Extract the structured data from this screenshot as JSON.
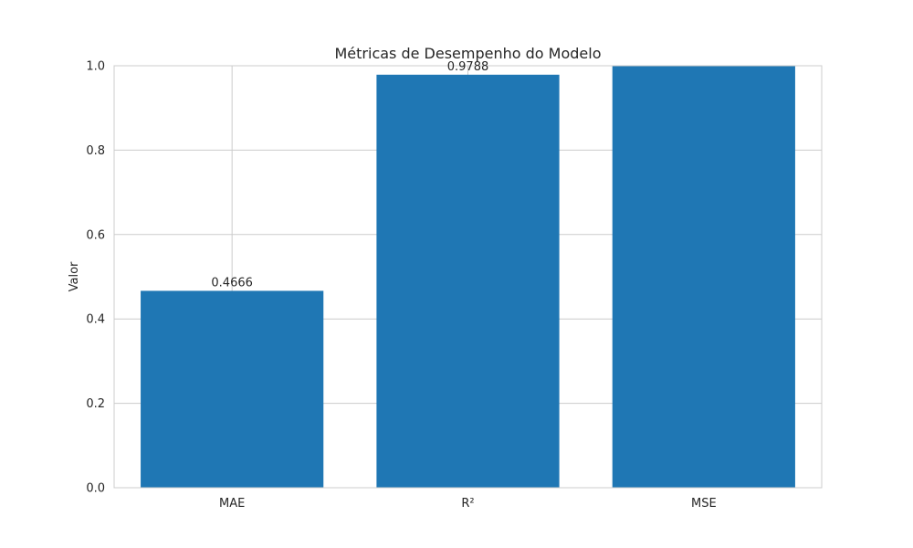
{
  "chart_data": {
    "type": "bar",
    "title": "Métricas de Desempenho do Modelo",
    "xlabel": "",
    "ylabel": "Valor",
    "categories": [
      "MAE",
      "R²",
      "MSE"
    ],
    "values": [
      0.4666,
      0.9788,
      1.0
    ],
    "data_labels": [
      "0.4666",
      "0.9788",
      ""
    ],
    "ylim": [
      0,
      1.0
    ],
    "yticks": [
      0.0,
      0.2,
      0.4,
      0.6,
      0.8,
      1.0
    ],
    "ytick_labels": [
      "0.0",
      "0.2",
      "0.4",
      "0.6",
      "0.8",
      "1.0"
    ],
    "grid": true,
    "colors": {
      "bar": "#1f77b4",
      "grid": "#cccccc",
      "text": "#262626"
    }
  }
}
